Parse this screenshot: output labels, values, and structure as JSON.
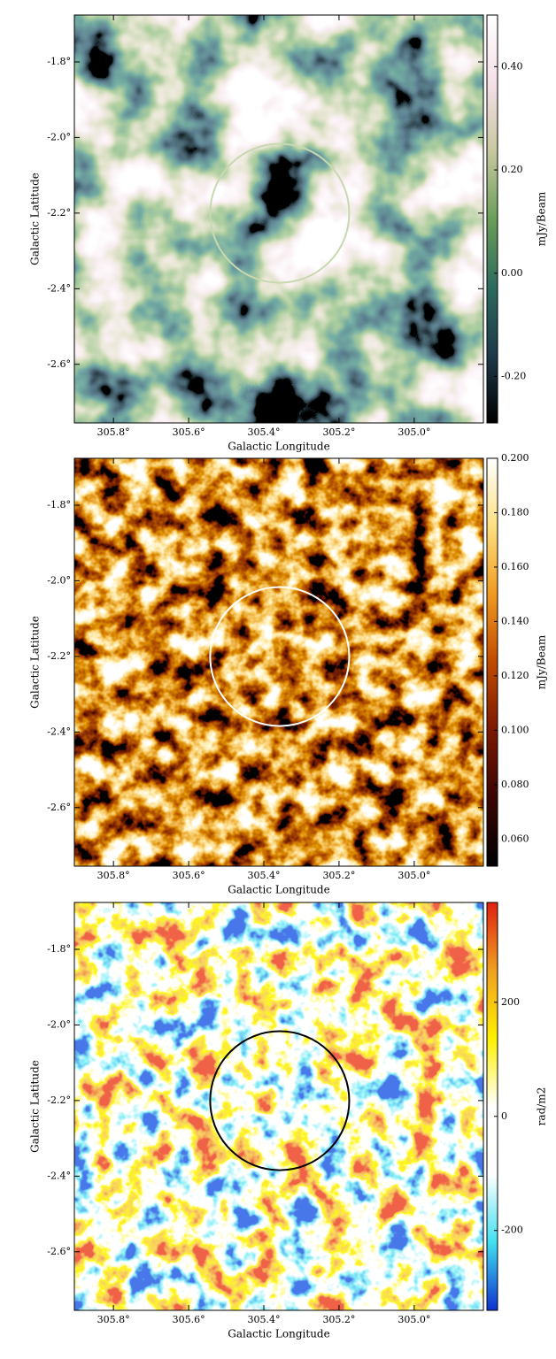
{
  "chart_data": [
    {
      "type": "image",
      "x_label": "Galactic Longitude",
      "y_label": "Galactic Latitude",
      "colorbar_label": "mJy/Beam",
      "xlim": [
        305.904,
        304.816
      ],
      "ylim": [
        -2.755,
        -1.676
      ],
      "xticks": [
        {
          "value": 305.8,
          "label": "305.8°"
        },
        {
          "value": 305.6,
          "label": "305.6°"
        },
        {
          "value": 305.4,
          "label": "305.4°"
        },
        {
          "value": 305.2,
          "label": "305.2°"
        },
        {
          "value": 305.0,
          "label": "305.0°"
        }
      ],
      "yticks": [
        {
          "value": -1.8,
          "label": "-1.8°"
        },
        {
          "value": -2.0,
          "label": "-2.0°"
        },
        {
          "value": -2.2,
          "label": "-2.2°"
        },
        {
          "value": -2.4,
          "label": "-2.4°"
        },
        {
          "value": -2.6,
          "label": "-2.6°"
        }
      ],
      "clim": [
        -0.29,
        0.5
      ],
      "cticks": [
        {
          "value": 0.4,
          "label": "0.40"
        },
        {
          "value": 0.2,
          "label": "0.20"
        },
        {
          "value": 0,
          "label": "0.00"
        },
        {
          "value": -0.2,
          "label": "-0.20"
        }
      ],
      "colormap": [
        "#000000",
        "#1d3a4a",
        "#2d6b5e",
        "#6a9e58",
        "#c8c8a0",
        "#f5e0e8",
        "#ffffff"
      ],
      "circle_color": "#c8d8b0"
    },
    {
      "type": "image",
      "x_label": "Galactic Longitude",
      "y_label": "Galactic Latitude",
      "colorbar_label": "mJy/Beam",
      "xlim": [
        305.904,
        304.816
      ],
      "ylim": [
        -2.755,
        -1.676
      ],
      "xticks": [
        {
          "value": 305.8,
          "label": "305.8°"
        },
        {
          "value": 305.6,
          "label": "305.6°"
        },
        {
          "value": 305.4,
          "label": "305.4°"
        },
        {
          "value": 305.2,
          "label": "305.2°"
        },
        {
          "value": 305.0,
          "label": "305.0°"
        }
      ],
      "yticks": [
        {
          "value": -1.8,
          "label": "-1.8°"
        },
        {
          "value": -2.0,
          "label": "-2.0°"
        },
        {
          "value": -2.2,
          "label": "-2.2°"
        },
        {
          "value": -2.4,
          "label": "-2.4°"
        },
        {
          "value": -2.6,
          "label": "-2.6°"
        }
      ],
      "clim": [
        0.05,
        0.2
      ],
      "cticks": [
        {
          "value": 0.2,
          "label": "0.200"
        },
        {
          "value": 0.18,
          "label": "0.180"
        },
        {
          "value": 0.16,
          "label": "0.160"
        },
        {
          "value": 0.14,
          "label": "0.140"
        },
        {
          "value": 0.12,
          "label": "0.120"
        },
        {
          "value": 0.1,
          "label": "0.100"
        },
        {
          "value": 0.08,
          "label": "0.080"
        },
        {
          "value": 0.06,
          "label": "0.060"
        }
      ],
      "colormap": [
        "#000000",
        "#3a0500",
        "#7a1800",
        "#c04a00",
        "#f09a20",
        "#ffe080",
        "#ffffff"
      ],
      "circle_color": "#ffffff"
    },
    {
      "type": "image",
      "x_label": "Galactic Longitude",
      "y_label": "Galactic Latitude",
      "colorbar_label": "rad/m2",
      "xlim": [
        305.904,
        304.816
      ],
      "ylim": [
        -2.755,
        -1.676
      ],
      "xticks": [
        {
          "value": 305.8,
          "label": "305.8°"
        },
        {
          "value": 305.6,
          "label": "305.6°"
        },
        {
          "value": 305.4,
          "label": "305.4°"
        },
        {
          "value": 305.2,
          "label": "305.2°"
        },
        {
          "value": 305.0,
          "label": "305.0°"
        }
      ],
      "yticks": [
        {
          "value": -1.8,
          "label": "-1.8°"
        },
        {
          "value": -2.0,
          "label": "-2.0°"
        },
        {
          "value": -2.2,
          "label": "-2.2°"
        },
        {
          "value": -2.4,
          "label": "-2.4°"
        },
        {
          "value": -2.6,
          "label": "-2.6°"
        }
      ],
      "clim": [
        -340,
        375
      ],
      "cticks": [
        200,
        0,
        -200
      ],
      "colormap": [
        "#1030d0",
        "#40e0f0",
        "#ffffff",
        "#ffffff",
        "#fff000",
        "#f0a020",
        "#e02010"
      ],
      "circle_color": "#000000"
    }
  ]
}
